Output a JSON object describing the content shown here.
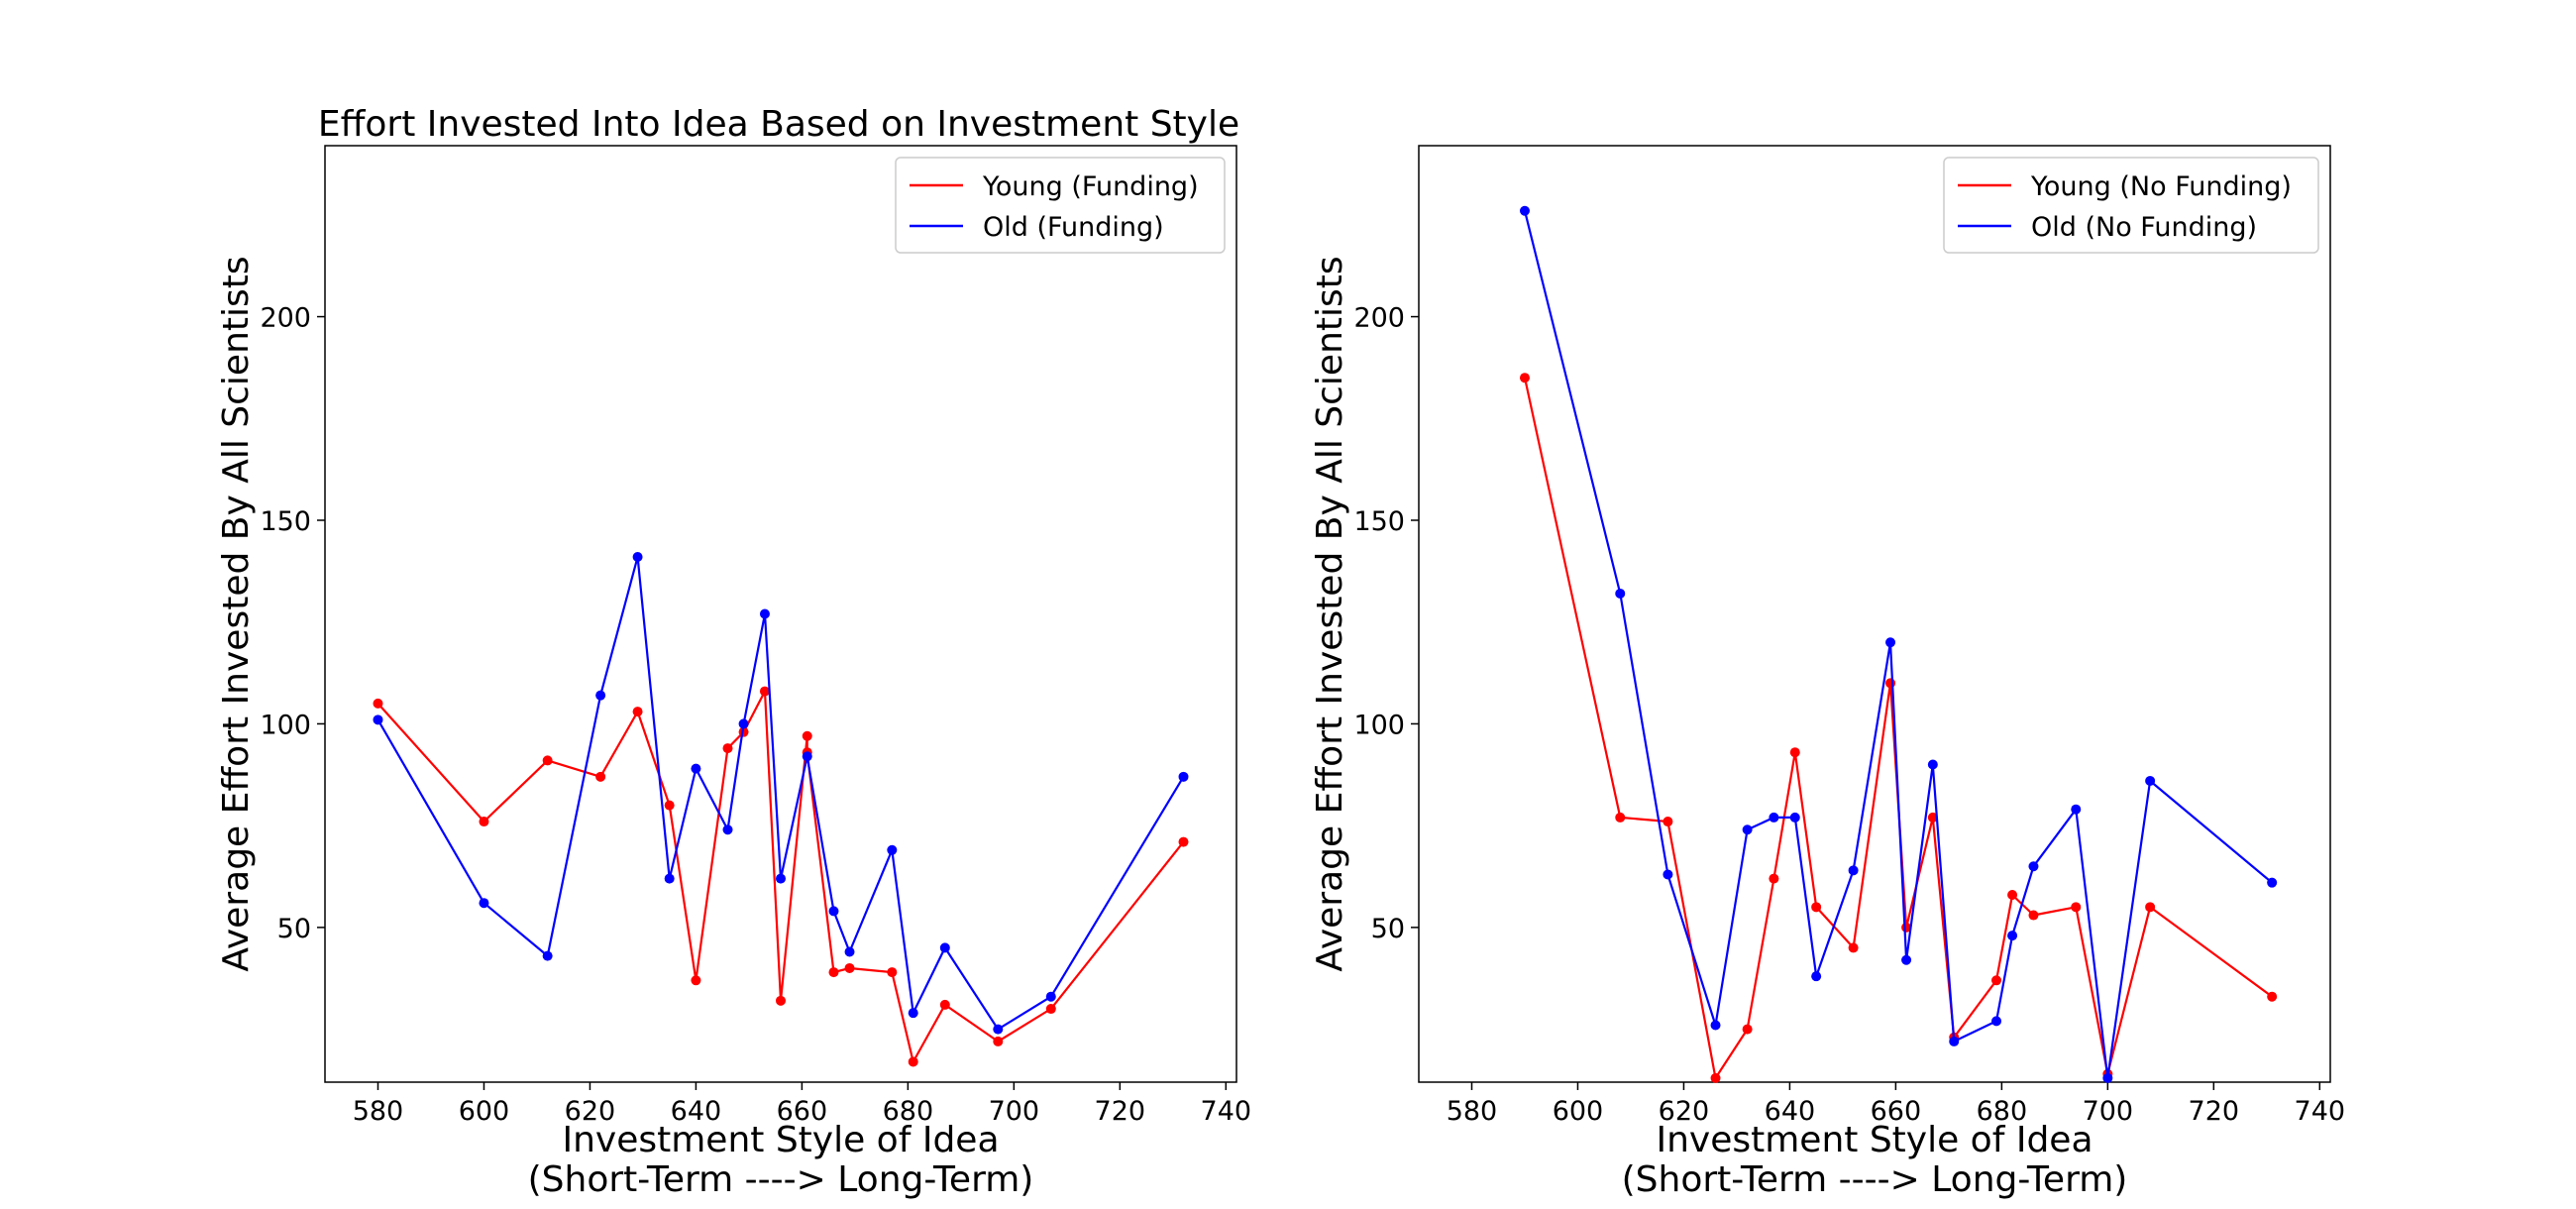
{
  "figure": {
    "title": "Effort Invested Into Idea Based on Investment Style"
  },
  "chart_data": [
    {
      "type": "line",
      "title": "Effort Invested Into Idea Based on Investment Style",
      "xlabel": "Investment Style of Idea\n(Short-Term ----> Long-Term)",
      "xlabel_lines": [
        "Investment Style of Idea",
        "(Short-Term ----> Long-Term)"
      ],
      "ylabel": "Average Effort Invested By All Scientists",
      "xlim": [
        570,
        742
      ],
      "ylim": [
        12,
        242
      ],
      "xticks": [
        580,
        600,
        620,
        640,
        660,
        680,
        700,
        720,
        740
      ],
      "yticks": [
        50,
        100,
        150,
        200
      ],
      "grid": false,
      "legend_position": "top-right",
      "series": [
        {
          "name": "Young (Funding)",
          "color": "#ff0000",
          "x": [
            580,
            600,
            612,
            622,
            629,
            635,
            640,
            646,
            649,
            653,
            656,
            661,
            661,
            666,
            669,
            677,
            681,
            687,
            697,
            707,
            732
          ],
          "y": [
            105,
            76,
            91,
            87,
            103,
            80,
            37,
            94,
            98,
            108,
            32,
            97,
            93,
            39,
            40,
            39,
            17,
            31,
            22,
            30,
            71
          ]
        },
        {
          "name": "Old (Funding)",
          "color": "#0000ff",
          "x": [
            580,
            600,
            612,
            622,
            629,
            635,
            640,
            646,
            649,
            653,
            656,
            661,
            666,
            669,
            677,
            681,
            687,
            697,
            707,
            732
          ],
          "y": [
            101,
            56,
            43,
            107,
            141,
            62,
            89,
            74,
            100,
            127,
            62,
            92,
            54,
            44,
            69,
            29,
            45,
            25,
            33,
            87
          ]
        }
      ]
    },
    {
      "type": "line",
      "title": "",
      "xlabel": "Investment Style of Idea\n(Short-Term ----> Long-Term)",
      "xlabel_lines": [
        "Investment Style of Idea",
        "(Short-Term ----> Long-Term)"
      ],
      "ylabel": "Average Effort Invested By All Scientists",
      "xlim": [
        570,
        742
      ],
      "ylim": [
        12,
        242
      ],
      "xticks": [
        580,
        600,
        620,
        640,
        660,
        680,
        700,
        720,
        740
      ],
      "yticks": [
        50,
        100,
        150,
        200
      ],
      "grid": false,
      "legend_position": "top-right",
      "series": [
        {
          "name": "Young (No Funding)",
          "color": "#ff0000",
          "x": [
            590,
            608,
            617,
            626,
            632,
            637,
            641,
            645,
            652,
            659,
            662,
            667,
            671,
            679,
            682,
            686,
            694,
            700,
            708,
            731
          ],
          "y": [
            185,
            77,
            76,
            13,
            25,
            62,
            93,
            55,
            45,
            110,
            50,
            77,
            23,
            37,
            58,
            53,
            55,
            14,
            55,
            33
          ]
        },
        {
          "name": "Old (No Funding)",
          "color": "#0000ff",
          "x": [
            590,
            608,
            617,
            626,
            632,
            637,
            641,
            645,
            652,
            659,
            662,
            667,
            671,
            679,
            682,
            686,
            694,
            700,
            708,
            731
          ],
          "y": [
            226,
            132,
            63,
            26,
            74,
            77,
            77,
            38,
            64,
            120,
            42,
            90,
            22,
            27,
            48,
            65,
            79,
            13,
            86,
            61
          ]
        }
      ]
    }
  ]
}
